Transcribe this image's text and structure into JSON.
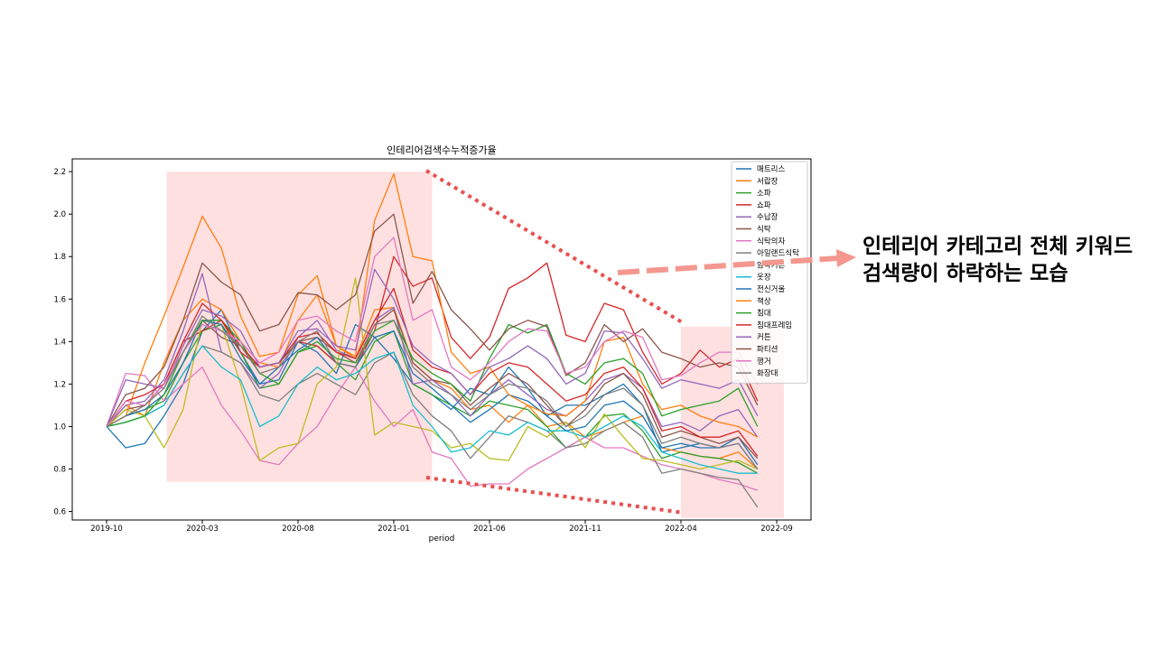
{
  "annotation": "인테리어 카테고리 전체 키워드 검색량이 하락하는 모습",
  "colors": {
    "highlight": "#ffe0e0",
    "arrow": "#f4978e",
    "dotted": "#e8504f"
  },
  "chart_data": {
    "type": "line",
    "title": "인테리어검색수누적증가율",
    "xlabel": "period",
    "ylabel": "",
    "x_ticks": [
      "2019-10",
      "2020-03",
      "2020-08",
      "2021-01",
      "2021-06",
      "2021-11",
      "2022-04",
      "2022-09"
    ],
    "y_ticks": [
      0.6,
      0.8,
      1.0,
      1.2,
      1.4,
      1.6,
      1.8,
      2.0,
      2.2
    ],
    "ylim": [
      0.56,
      2.26
    ],
    "x_start": "2019-10",
    "legend_position": "top-right",
    "grid": false,
    "highlight_ranges": [
      {
        "x": [
          "2020-01",
          "2021-03"
        ],
        "y": [
          0.74,
          2.2
        ]
      },
      {
        "x": [
          "2022-04",
          "2022-09"
        ],
        "y": [
          0.57,
          1.47
        ]
      }
    ],
    "series": [
      {
        "name": "매트리스",
        "color": "#1f77b4",
        "values": [
          1.0,
          0.9,
          0.92,
          1.05,
          1.2,
          1.45,
          1.55,
          1.35,
          1.2,
          1.22,
          1.4,
          1.35,
          1.25,
          1.48,
          1.42,
          1.32,
          1.2,
          1.15,
          1.08,
          1.18,
          1.15,
          1.28,
          1.18,
          1.05,
          1.1,
          1.1,
          1.15,
          1.2,
          1.1,
          0.88,
          0.9,
          0.92,
          0.9,
          0.95,
          0.82
        ]
      },
      {
        "name": "서랍장",
        "color": "#ff7f0e",
        "values": [
          1.0,
          1.1,
          1.05,
          1.3,
          1.5,
          1.6,
          1.55,
          1.4,
          1.3,
          1.28,
          1.5,
          1.62,
          1.38,
          1.32,
          1.55,
          1.56,
          1.3,
          1.22,
          1.18,
          1.08,
          1.1,
          1.02,
          1.1,
          1.0,
          1.02,
          0.95,
          0.98,
          1.02,
          1.05,
          0.9,
          0.88,
          0.86,
          0.85,
          0.88,
          0.8
        ]
      },
      {
        "name": "소파",
        "color": "#2ca02c",
        "values": [
          1.0,
          1.05,
          1.08,
          1.12,
          1.3,
          1.45,
          1.48,
          1.35,
          1.18,
          1.2,
          1.35,
          1.38,
          1.3,
          1.22,
          1.4,
          1.45,
          1.2,
          1.15,
          1.1,
          1.05,
          1.12,
          1.1,
          1.08,
          1.0,
          0.9,
          0.95,
          1.05,
          1.06,
          0.98,
          0.85,
          0.88,
          0.86,
          0.85,
          0.83,
          0.78
        ]
      },
      {
        "name": "쇼파",
        "color": "#d62728",
        "values": [
          1.0,
          1.05,
          1.1,
          1.2,
          1.4,
          1.45,
          1.5,
          1.35,
          1.28,
          1.3,
          1.4,
          1.38,
          1.3,
          1.28,
          1.45,
          1.8,
          1.66,
          1.7,
          1.42,
          1.32,
          1.42,
          1.65,
          1.7,
          1.77,
          1.43,
          1.4,
          1.58,
          1.55,
          1.35,
          1.2,
          1.25,
          1.36,
          1.28,
          1.32,
          1.12
        ]
      },
      {
        "name": "수납장",
        "color": "#9467bd",
        "values": [
          1.0,
          1.1,
          1.12,
          1.22,
          1.45,
          1.72,
          1.35,
          1.3,
          1.18,
          1.25,
          1.42,
          1.5,
          1.36,
          1.32,
          1.5,
          1.56,
          1.2,
          1.22,
          1.15,
          1.05,
          1.15,
          1.22,
          1.15,
          1.08,
          1.05,
          1.12,
          1.22,
          1.25,
          1.18,
          1.0,
          1.02,
          0.98,
          1.05,
          1.08,
          0.95
        ]
      },
      {
        "name": "식탁",
        "color": "#8c564b",
        "values": [
          1.0,
          1.08,
          1.1,
          1.2,
          1.35,
          1.5,
          1.42,
          1.38,
          1.28,
          1.3,
          1.4,
          1.42,
          1.35,
          1.3,
          1.48,
          1.55,
          1.3,
          1.22,
          1.2,
          1.1,
          1.18,
          1.25,
          1.2,
          1.1,
          1.0,
          1.08,
          1.2,
          1.25,
          1.15,
          0.95,
          0.98,
          0.95,
          0.92,
          0.95,
          0.85
        ]
      },
      {
        "name": "식탁의자",
        "color": "#e377c2",
        "values": [
          1.0,
          1.25,
          1.24,
          1.12,
          1.2,
          1.28,
          1.1,
          0.98,
          0.84,
          0.82,
          0.92,
          1.0,
          1.15,
          1.28,
          1.12,
          1.0,
          1.08,
          0.88,
          0.85,
          0.72,
          0.73,
          0.73,
          0.8,
          0.85,
          0.9,
          0.95,
          0.9,
          0.9,
          0.86,
          0.82,
          0.8,
          0.78,
          0.75,
          0.73,
          0.7
        ]
      },
      {
        "name": "아일랜드식탁",
        "color": "#7f7f7f",
        "values": [
          1.0,
          1.02,
          1.05,
          1.1,
          1.25,
          1.38,
          1.35,
          1.3,
          1.15,
          1.12,
          1.2,
          1.25,
          1.2,
          1.15,
          1.3,
          1.35,
          1.15,
          1.05,
          0.98,
          0.85,
          0.95,
          1.05,
          1.02,
          0.98,
          0.9,
          0.92,
          0.98,
          1.02,
          0.95,
          0.78,
          0.8,
          0.78,
          0.76,
          0.75,
          0.62
        ]
      },
      {
        "name": "암막커튼",
        "color": "#bcbd22",
        "values": [
          1.0,
          1.08,
          1.05,
          0.9,
          1.08,
          1.5,
          1.48,
          1.2,
          0.84,
          0.9,
          0.92,
          1.2,
          1.28,
          1.7,
          0.96,
          1.02,
          1.0,
          0.98,
          0.9,
          0.92,
          0.85,
          0.84,
          1.0,
          0.95,
          1.02,
          0.9,
          1.06,
          0.95,
          0.85,
          0.84,
          0.82,
          0.8,
          0.82,
          0.84,
          0.8
        ]
      },
      {
        "name": "옷장",
        "color": "#17becf",
        "values": [
          1.0,
          1.02,
          1.05,
          1.1,
          1.25,
          1.38,
          1.28,
          1.22,
          1.0,
          1.05,
          1.2,
          1.28,
          1.22,
          1.25,
          1.32,
          1.35,
          1.1,
          1.0,
          0.88,
          0.9,
          0.98,
          0.96,
          1.02,
          0.98,
          0.98,
          0.95,
          1.0,
          1.05,
          1.0,
          0.88,
          0.85,
          0.82,
          0.8,
          0.78,
          0.78
        ]
      },
      {
        "name": "전신거울",
        "color": "#1f77b4",
        "values": [
          1.0,
          1.05,
          1.08,
          1.15,
          1.3,
          1.5,
          1.48,
          1.32,
          1.2,
          1.28,
          1.36,
          1.42,
          1.3,
          1.28,
          1.42,
          1.45,
          1.25,
          1.18,
          1.1,
          1.02,
          1.08,
          1.15,
          1.12,
          1.05,
          0.98,
          1.0,
          1.1,
          1.12,
          1.05,
          0.9,
          0.92,
          0.9,
          0.9,
          0.92,
          0.8
        ]
      },
      {
        "name": "책상",
        "color": "#ff7f0e",
        "values": [
          1.0,
          1.05,
          1.3,
          1.52,
          1.75,
          1.99,
          1.84,
          1.52,
          1.33,
          1.35,
          1.62,
          1.71,
          1.38,
          1.33,
          1.97,
          2.19,
          1.8,
          1.78,
          1.35,
          1.25,
          1.28,
          1.15,
          1.1,
          1.06,
          1.05,
          1.12,
          1.4,
          1.42,
          1.2,
          1.08,
          1.1,
          1.05,
          1.02,
          1.0,
          0.95
        ]
      },
      {
        "name": "침대",
        "color": "#2ca02c",
        "values": [
          1.0,
          1.02,
          1.05,
          1.15,
          1.35,
          1.5,
          1.5,
          1.4,
          1.25,
          1.2,
          1.35,
          1.4,
          1.32,
          1.3,
          1.45,
          1.5,
          1.32,
          1.25,
          1.2,
          1.12,
          1.32,
          1.48,
          1.44,
          1.48,
          1.25,
          1.2,
          1.3,
          1.32,
          1.25,
          1.05,
          1.08,
          1.1,
          1.12,
          1.18,
          1.0
        ]
      },
      {
        "name": "침대프레임",
        "color": "#d62728",
        "values": [
          1.0,
          1.12,
          1.15,
          1.2,
          1.4,
          1.58,
          1.5,
          1.38,
          1.28,
          1.3,
          1.42,
          1.44,
          1.35,
          1.32,
          1.5,
          1.65,
          1.36,
          1.28,
          1.25,
          1.15,
          1.25,
          1.3,
          1.28,
          1.2,
          1.12,
          1.15,
          1.25,
          1.28,
          1.18,
          0.98,
          1.0,
          0.95,
          0.95,
          0.98,
          0.86
        ]
      },
      {
        "name": "커튼",
        "color": "#9467bd",
        "values": [
          1.0,
          1.22,
          1.2,
          1.18,
          1.38,
          1.55,
          1.52,
          1.45,
          1.28,
          1.3,
          1.45,
          1.46,
          1.38,
          1.36,
          1.74,
          1.6,
          1.38,
          1.3,
          1.25,
          1.15,
          1.28,
          1.32,
          1.38,
          1.32,
          1.2,
          1.25,
          1.45,
          1.44,
          1.32,
          1.18,
          1.22,
          1.2,
          1.18,
          1.22,
          1.05
        ]
      },
      {
        "name": "파티션",
        "color": "#8c564b",
        "values": [
          1.0,
          1.15,
          1.18,
          1.28,
          1.5,
          1.77,
          1.68,
          1.62,
          1.45,
          1.48,
          1.63,
          1.62,
          1.55,
          1.62,
          1.92,
          2.0,
          1.58,
          1.73,
          1.55,
          1.46,
          1.36,
          1.46,
          1.5,
          1.47,
          1.24,
          1.3,
          1.48,
          1.4,
          1.46,
          1.35,
          1.32,
          1.28,
          1.3,
          1.28,
          1.1
        ]
      },
      {
        "name": "행거",
        "color": "#e377c2",
        "values": [
          1.0,
          1.12,
          1.1,
          1.2,
          1.35,
          1.48,
          1.45,
          1.4,
          1.3,
          1.35,
          1.5,
          1.52,
          1.45,
          1.4,
          1.8,
          1.89,
          1.5,
          1.55,
          1.28,
          1.22,
          1.3,
          1.4,
          1.46,
          1.45,
          1.25,
          1.28,
          1.4,
          1.45,
          1.42,
          1.22,
          1.24,
          1.3,
          1.35,
          1.35,
          1.2
        ]
      },
      {
        "name": "화장대",
        "color": "#7f7f7f",
        "values": [
          1.0,
          1.05,
          1.1,
          1.18,
          1.35,
          1.52,
          1.45,
          1.38,
          1.25,
          1.28,
          1.4,
          1.45,
          1.3,
          1.28,
          1.48,
          1.5,
          1.28,
          1.2,
          1.15,
          1.08,
          1.15,
          1.2,
          1.18,
          1.12,
          1.0,
          1.05,
          1.15,
          1.18,
          1.1,
          0.92,
          0.95,
          0.92,
          0.9,
          0.92,
          0.8
        ]
      }
    ]
  }
}
